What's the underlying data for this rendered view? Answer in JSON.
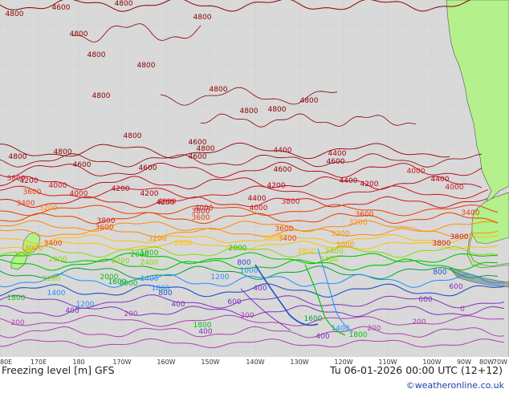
{
  "map": {
    "title": "Freezing level [m] GFS",
    "datetime": "Tu 06-01-2026 00:00 UTC (12+12)",
    "credit": "©weatheronline.co.uk",
    "x_ticks": [
      "80E",
      "170E",
      "180",
      "170W",
      "160W",
      "150W",
      "140W",
      "130W",
      "120W",
      "110W",
      "100W",
      "90W",
      "80W",
      "70W"
    ],
    "colors": {
      "ocean": "#d9d9d9",
      "land": "#b4f08c",
      "c4800": "#8b0000",
      "c4400": "#b00010",
      "c4000": "#d01818",
      "c3600": "#e84000",
      "c3200": "#ff8c00",
      "c2800": "#ffc000",
      "c2400": "#8fd800",
      "c2000": "#00c800",
      "c1600": "#00a03c",
      "c1200": "#1e90ff",
      "c800": "#1e50c8",
      "c400": "#8030c0",
      "c200": "#b040b0"
    },
    "contour_labels": [
      {
        "text": "4600",
        "c": "c4800"
      },
      {
        "text": "4800",
        "c": "c4800"
      },
      {
        "text": "4800",
        "c": "c4800"
      },
      {
        "text": "4800",
        "c": "c4800"
      },
      {
        "text": "4800",
        "c": "c4800"
      },
      {
        "text": "4800",
        "c": "c4800"
      },
      {
        "text": "4800",
        "c": "c4800"
      },
      {
        "text": "4800",
        "c": "c4800"
      },
      {
        "text": "4800",
        "c": "c4800"
      },
      {
        "text": "4800",
        "c": "c4800"
      },
      {
        "text": "4800",
        "c": "c4800"
      },
      {
        "text": "4800",
        "c": "c4800"
      },
      {
        "text": "4800",
        "c": "c4800"
      },
      {
        "text": "4800",
        "c": "c4800"
      },
      {
        "text": "4800",
        "c": "c4800"
      },
      {
        "text": "4800",
        "c": "c4800"
      },
      {
        "text": "4600",
        "c": "c4800"
      },
      {
        "text": "4600",
        "c": "c4800"
      },
      {
        "text": "4600",
        "c": "c4800"
      },
      {
        "text": "4600",
        "c": "c4800"
      },
      {
        "text": "4600",
        "c": "c4800"
      },
      {
        "text": "4600",
        "c": "c4800"
      },
      {
        "text": "4400",
        "c": "c4400"
      },
      {
        "text": "4400",
        "c": "c4400"
      },
      {
        "text": "4400",
        "c": "c4400"
      },
      {
        "text": "4400",
        "c": "c4400"
      },
      {
        "text": "4400",
        "c": "c4400"
      },
      {
        "text": "4200",
        "c": "c4400"
      },
      {
        "text": "4200",
        "c": "c4400"
      },
      {
        "text": "4200",
        "c": "c4400"
      },
      {
        "text": "4200",
        "c": "c4400"
      },
      {
        "text": "4200",
        "c": "c4400"
      },
      {
        "text": "4200",
        "c": "c4400"
      },
      {
        "text": "4000",
        "c": "c4000"
      },
      {
        "text": "4000",
        "c": "c4000"
      },
      {
        "text": "4000",
        "c": "c4000"
      },
      {
        "text": "4000",
        "c": "c4000"
      },
      {
        "text": "4000",
        "c": "c4000"
      },
      {
        "text": "4000",
        "c": "c4000"
      },
      {
        "text": "4000",
        "c": "c4000"
      },
      {
        "text": "3800",
        "c": "c4000"
      },
      {
        "text": "3800",
        "c": "c4000"
      },
      {
        "text": "3800",
        "c": "c4000"
      },
      {
        "text": "3800",
        "c": "c4000"
      },
      {
        "text": "3800",
        "c": "c4000"
      },
      {
        "text": "3800",
        "c": "c4000"
      },
      {
        "text": "3600",
        "c": "c3600"
      },
      {
        "text": "3600",
        "c": "c3600"
      },
      {
        "text": "3600",
        "c": "c3600"
      },
      {
        "text": "3600",
        "c": "c3600"
      },
      {
        "text": "3600",
        "c": "c3600"
      },
      {
        "text": "3400",
        "c": "c3600"
      },
      {
        "text": "3400",
        "c": "c3600"
      },
      {
        "text": "3400",
        "c": "c3600"
      },
      {
        "text": "3400",
        "c": "c3600"
      },
      {
        "text": "3200",
        "c": "c3200"
      },
      {
        "text": "3200",
        "c": "c3200"
      },
      {
        "text": "3200",
        "c": "c3200"
      },
      {
        "text": "3200",
        "c": "c3200"
      },
      {
        "text": "3000",
        "c": "c3200"
      },
      {
        "text": "3000",
        "c": "c3200"
      },
      {
        "text": "2800",
        "c": "c2800"
      },
      {
        "text": "2800",
        "c": "c2800"
      },
      {
        "text": "2800",
        "c": "c2800"
      },
      {
        "text": "2400",
        "c": "c2400"
      },
      {
        "text": "2400",
        "c": "c2400"
      },
      {
        "text": "2400",
        "c": "c2400"
      },
      {
        "text": "2400",
        "c": "c2400"
      },
      {
        "text": "2200",
        "c": "c2400"
      },
      {
        "text": "2200",
        "c": "c2400"
      },
      {
        "text": "2200",
        "c": "c2400"
      },
      {
        "text": "2000",
        "c": "c2000"
      },
      {
        "text": "2000",
        "c": "c2000"
      },
      {
        "text": "2000",
        "c": "c2000"
      },
      {
        "text": "2000",
        "c": "c2000"
      },
      {
        "text": "1800",
        "c": "c2000"
      },
      {
        "text": "1800",
        "c": "c2000"
      },
      {
        "text": "1800",
        "c": "c2000"
      },
      {
        "text": "1600",
        "c": "c1600"
      },
      {
        "text": "1600",
        "c": "c1600"
      },
      {
        "text": "1400",
        "c": "c1200"
      },
      {
        "text": "1400",
        "c": "c1200"
      },
      {
        "text": "1400",
        "c": "c1200"
      },
      {
        "text": "1200",
        "c": "c1200"
      },
      {
        "text": "1200",
        "c": "c1200"
      },
      {
        "text": "1000",
        "c": "c1200"
      },
      {
        "text": "1000",
        "c": "c1200"
      },
      {
        "text": "800",
        "c": "c800"
      },
      {
        "text": "800",
        "c": "c800"
      },
      {
        "text": "800",
        "c": "c800"
      },
      {
        "text": "600",
        "c": "c400"
      },
      {
        "text": "600",
        "c": "c400"
      },
      {
        "text": "600",
        "c": "c400"
      },
      {
        "text": "400",
        "c": "c400"
      },
      {
        "text": "400",
        "c": "c400"
      },
      {
        "text": "400",
        "c": "c400"
      },
      {
        "text": "400",
        "c": "c400"
      },
      {
        "text": "400",
        "c": "c400"
      },
      {
        "text": "200",
        "c": "c200"
      },
      {
        "text": "200",
        "c": "c200"
      },
      {
        "text": "200",
        "c": "c200"
      },
      {
        "text": "200",
        "c": "c200"
      },
      {
        "text": "200",
        "c": "c200"
      },
      {
        "text": "0",
        "c": "c200"
      },
      {
        "text": "1800",
        "c": "c2000"
      }
    ]
  }
}
